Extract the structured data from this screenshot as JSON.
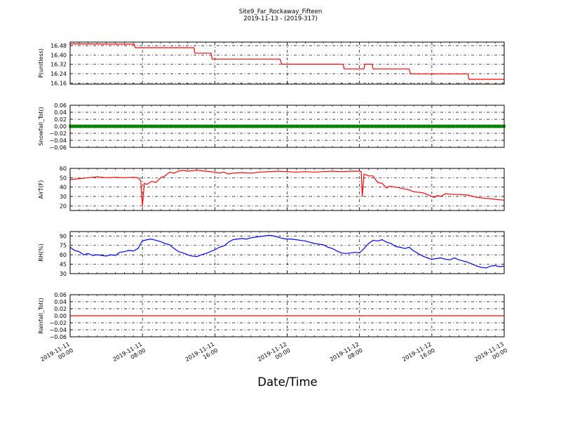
{
  "figure": {
    "title": "Site9_Far_Rockaway_Fifteen",
    "subtitle": "2019-11-13 - (2019-317)",
    "xlabel": "Date/Time",
    "x_ticks": [
      "2019-11-11 00:00",
      "2019-11-11 08:00",
      "2019-11-11 16:00",
      "2019-11-12 00:00",
      "2019-11-12 08:00",
      "2019-11-12 16:00",
      "2019-11-13 00:00"
    ]
  },
  "chart_data": [
    {
      "type": "line",
      "ylabel": "P(unitless)",
      "ylim": [
        16.15,
        16.51
      ],
      "yticks": [
        "16.16",
        "16.24",
        "16.32",
        "16.40",
        "16.48"
      ],
      "grid": true,
      "series": [
        {
          "color": "#ff0000",
          "points": [
            [
              0,
              16.495
            ],
            [
              7.1,
              16.492
            ],
            [
              7.2,
              16.462
            ],
            [
              13.7,
              16.462
            ],
            [
              13.8,
              16.415
            ],
            [
              15.6,
              16.415
            ],
            [
              15.7,
              16.365
            ],
            [
              23.2,
              16.365
            ],
            [
              23.4,
              16.321
            ],
            [
              30.2,
              16.321
            ],
            [
              30.3,
              16.281
            ],
            [
              32.5,
              16.281
            ],
            [
              32.6,
              16.321
            ],
            [
              33.4,
              16.321
            ],
            [
              33.5,
              16.281
            ],
            [
              37.5,
              16.281
            ],
            [
              37.6,
              16.238
            ],
            [
              44.0,
              16.238
            ],
            [
              44.1,
              16.192
            ],
            [
              48,
              16.192
            ]
          ]
        }
      ]
    },
    {
      "type": "scatter",
      "ylabel": "Snowfall_Tot()",
      "ylim": [
        -0.06,
        0.06
      ],
      "yticks": [
        "−0.06",
        "−0.04",
        "−0.02",
        "0.00",
        "0.02",
        "0.04",
        "0.06"
      ],
      "grid": true,
      "series": [
        {
          "color": "#008000",
          "constant": 0.0,
          "range": [
            0,
            48
          ]
        }
      ]
    },
    {
      "type": "line",
      "ylabel": "AirT(F)",
      "ylim": [
        15,
        60
      ],
      "yticks": [
        "20",
        "30",
        "40",
        "50",
        "60"
      ],
      "grid": true,
      "series": [
        {
          "color": "#ff0000",
          "points": [
            [
              0,
              48
            ],
            [
              1,
              49
            ],
            [
              2,
              50
            ],
            [
              3,
              51
            ],
            [
              4,
              50
            ],
            [
              5,
              50.5
            ],
            [
              6,
              50
            ],
            [
              7,
              50.5
            ],
            [
              7.5,
              50
            ],
            [
              7.8,
              47
            ],
            [
              8.0,
              20
            ],
            [
              8.2,
              44
            ],
            [
              8.5,
              43
            ],
            [
              9,
              46
            ],
            [
              9.5,
              45
            ],
            [
              10,
              50
            ],
            [
              10.5,
              52
            ],
            [
              11,
              56
            ],
            [
              11.5,
              55
            ],
            [
              12,
              57
            ],
            [
              12.5,
              58
            ],
            [
              13,
              57
            ],
            [
              14,
              58
            ],
            [
              15,
              57
            ],
            [
              16,
              56
            ],
            [
              16.5,
              55
            ],
            [
              17,
              56
            ],
            [
              17.5,
              54
            ],
            [
              18,
              55
            ],
            [
              19,
              55.5
            ],
            [
              20,
              55
            ],
            [
              21,
              56
            ],
            [
              22,
              56.5
            ],
            [
              23,
              57
            ],
            [
              24,
              56.5
            ],
            [
              25,
              56
            ],
            [
              26,
              56.5
            ],
            [
              27,
              56
            ],
            [
              28,
              56.5
            ],
            [
              29,
              57
            ],
            [
              30,
              56.5
            ],
            [
              31,
              57
            ],
            [
              32,
              57
            ],
            [
              32.2,
              56.5
            ],
            [
              32.3,
              30
            ],
            [
              32.5,
              54
            ],
            [
              33,
              52
            ],
            [
              33.5,
              52
            ],
            [
              34,
              45
            ],
            [
              34.5,
              44
            ],
            [
              35,
              39
            ],
            [
              35.3,
              41
            ],
            [
              36,
              40
            ],
            [
              37,
              38
            ],
            [
              37.5,
              37
            ],
            [
              38,
              35
            ],
            [
              39,
              34
            ],
            [
              39.5,
              32
            ],
            [
              40,
              30
            ],
            [
              40.3,
              29
            ],
            [
              40.6,
              31
            ],
            [
              41,
              30
            ],
            [
              41.5,
              33
            ],
            [
              42,
              32.5
            ],
            [
              43,
              32
            ],
            [
              44,
              31.5
            ],
            [
              45,
              29
            ],
            [
              46,
              28
            ],
            [
              47,
              27
            ],
            [
              48,
              26
            ]
          ]
        }
      ]
    },
    {
      "type": "line",
      "ylabel": "RH(%)",
      "ylim": [
        30,
        97
      ],
      "yticks": [
        "30",
        "45",
        "60",
        "75",
        "90"
      ],
      "grid": true,
      "series": [
        {
          "color": "#0000ff",
          "points": [
            [
              0,
              72
            ],
            [
              0.5,
              67
            ],
            [
              1,
              65
            ],
            [
              1.5,
              60
            ],
            [
              2,
              62
            ],
            [
              2.5,
              59
            ],
            [
              3,
              60
            ],
            [
              3.5,
              59
            ],
            [
              4,
              58
            ],
            [
              4.5,
              60
            ],
            [
              5,
              59
            ],
            [
              5.5,
              64
            ],
            [
              6,
              65
            ],
            [
              6.5,
              67
            ],
            [
              7,
              66
            ],
            [
              7.5,
              70
            ],
            [
              7.8,
              78
            ],
            [
              8,
              82
            ],
            [
              8.5,
              84
            ],
            [
              9,
              85
            ],
            [
              9.5,
              83
            ],
            [
              10,
              81
            ],
            [
              10.5,
              78
            ],
            [
              11,
              76
            ],
            [
              11.5,
              70
            ],
            [
              12,
              65
            ],
            [
              12.5,
              63
            ],
            [
              13,
              60
            ],
            [
              13.5,
              58
            ],
            [
              14,
              57
            ],
            [
              14.5,
              60
            ],
            [
              15,
              62
            ],
            [
              15.5,
              65
            ],
            [
              16,
              68
            ],
            [
              16.5,
              72
            ],
            [
              17,
              74
            ],
            [
              17.5,
              80
            ],
            [
              18,
              84
            ],
            [
              18.5,
              85
            ],
            [
              19,
              86
            ],
            [
              19.5,
              85
            ],
            [
              20,
              87
            ],
            [
              20.5,
              88
            ],
            [
              21,
              89
            ],
            [
              21.5,
              90
            ],
            [
              22,
              91
            ],
            [
              22.5,
              90
            ],
            [
              23,
              88
            ],
            [
              23.5,
              86
            ],
            [
              24,
              85
            ],
            [
              24.5,
              85
            ],
            [
              25,
              84
            ],
            [
              25.5,
              83
            ],
            [
              26,
              82
            ],
            [
              26.5,
              80
            ],
            [
              27,
              78
            ],
            [
              27.5,
              77
            ],
            [
              28,
              76
            ],
            [
              28.5,
              72
            ],
            [
              29,
              70
            ],
            [
              29.5,
              66
            ],
            [
              30,
              63
            ],
            [
              30.5,
              62
            ],
            [
              31,
              63
            ],
            [
              31.5,
              64
            ],
            [
              32,
              63
            ],
            [
              32.5,
              70
            ],
            [
              33,
              78
            ],
            [
              33.5,
              83
            ],
            [
              34,
              82
            ],
            [
              34.5,
              84
            ],
            [
              35,
              80
            ],
            [
              35.5,
              78
            ],
            [
              36,
              73
            ],
            [
              36.5,
              72
            ],
            [
              37,
              70
            ],
            [
              37.5,
              72
            ],
            [
              38,
              66
            ],
            [
              38.5,
              62
            ],
            [
              39,
              58
            ],
            [
              39.5,
              55
            ],
            [
              40,
              53
            ],
            [
              40.5,
              54
            ],
            [
              41,
              55
            ],
            [
              41.5,
              53
            ],
            [
              42,
              52
            ],
            [
              42.5,
              55
            ],
            [
              43,
              52
            ],
            [
              43.5,
              50
            ],
            [
              44,
              48
            ],
            [
              44.5,
              45
            ],
            [
              45,
              42
            ],
            [
              45.5,
              40
            ],
            [
              46,
              39
            ],
            [
              46.5,
              42
            ],
            [
              47,
              43
            ],
            [
              47.5,
              41
            ],
            [
              48,
              42
            ]
          ]
        }
      ]
    },
    {
      "type": "line",
      "ylabel": "Rainfall_Tot()",
      "ylim": [
        -0.06,
        0.06
      ],
      "yticks": [
        "−0.06",
        "−0.04",
        "−0.02",
        "0.00",
        "0.02",
        "0.04",
        "0.06"
      ],
      "grid": true,
      "series": [
        {
          "color": "#ff0000",
          "points": [
            [
              0,
              0
            ],
            [
              48,
              0
            ]
          ]
        }
      ]
    }
  ]
}
